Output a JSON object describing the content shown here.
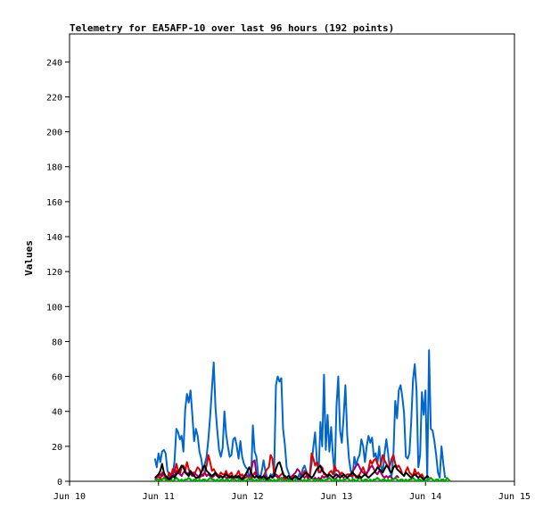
{
  "chart_data": {
    "type": "line",
    "title": "Telemetry for EA5AFP-10 over last 96 hours (192 points)",
    "xlabel": "",
    "ylabel": "Values",
    "ylim": [
      0,
      256
    ],
    "yticks": [
      0,
      20,
      40,
      60,
      80,
      100,
      120,
      140,
      160,
      180,
      200,
      220,
      240
    ],
    "xlim": [
      0,
      5
    ],
    "xticks": [
      {
        "x": 0,
        "label": "Jun 10"
      },
      {
        "x": 1,
        "label": "Jun 11"
      },
      {
        "x": 2,
        "label": "Jun 12"
      },
      {
        "x": 3,
        "label": "Jun 13"
      },
      {
        "x": 4,
        "label": "Jun 14"
      },
      {
        "x": 5,
        "label": "Jun 15"
      }
    ],
    "grid": false,
    "x_start": 0.96,
    "x_step": 0.02,
    "series": [
      {
        "color": "#0066cc",
        "values": [
          13,
          8,
          16,
          11,
          17,
          18,
          16,
          6,
          4,
          1,
          3,
          12,
          30,
          28,
          24,
          26,
          17,
          41,
          50,
          45,
          52,
          38,
          23,
          30,
          26,
          17,
          13,
          6,
          10,
          14,
          24,
          37,
          53,
          68,
          42,
          29,
          18,
          14,
          19,
          40,
          27,
          20,
          14,
          15,
          24,
          25,
          20,
          13,
          23,
          14,
          10,
          8,
          7,
          1,
          1,
          32,
          17,
          14,
          4,
          1,
          6,
          12,
          6,
          2,
          1,
          4,
          3,
          6,
          55,
          60,
          57,
          59,
          30,
          21,
          8,
          5,
          2,
          1,
          3,
          2,
          1,
          4,
          2,
          7,
          9,
          6,
          2,
          3,
          10,
          20,
          28,
          12,
          5,
          34,
          20,
          61,
          18,
          38,
          17,
          31,
          15,
          3,
          43,
          60,
          29,
          22,
          37,
          55,
          27,
          13,
          6,
          2,
          14,
          9,
          13,
          15,
          24,
          20,
          11,
          20,
          26,
          22,
          25,
          14,
          16,
          10,
          20,
          9,
          5,
          16,
          24,
          16,
          6,
          3,
          16,
          46,
          36,
          52,
          55,
          48,
          39,
          14,
          13,
          16,
          34,
          58,
          67,
          52,
          8,
          15,
          51,
          38,
          52,
          2,
          75,
          30,
          29,
          23,
          15,
          5,
          2,
          20,
          10,
          2
        ]
      },
      {
        "color": "#dd0000",
        "values": [
          1,
          2,
          3,
          1,
          5,
          4,
          1,
          2,
          5,
          3,
          7,
          5,
          10,
          6,
          4,
          8,
          9,
          6,
          11,
          7,
          4,
          5,
          3,
          6,
          8,
          7,
          4,
          3,
          5,
          9,
          15,
          11,
          6,
          7,
          5,
          4,
          3,
          5,
          4,
          4,
          6,
          3,
          4,
          5,
          2,
          3,
          4,
          6,
          3,
          4,
          2,
          2,
          3,
          2,
          1,
          3,
          5,
          3,
          2,
          1,
          2,
          3,
          5,
          7,
          8,
          15,
          13,
          4,
          3,
          2,
          3,
          4,
          5,
          1,
          2,
          1,
          2,
          1,
          3,
          3,
          2,
          1,
          2,
          3,
          6,
          5,
          1,
          4,
          16,
          13,
          9,
          11,
          6,
          5,
          8,
          4,
          4,
          3,
          5,
          6,
          4,
          9,
          6,
          6,
          4,
          5,
          4,
          3,
          4,
          4,
          3,
          3,
          4,
          2,
          3,
          4,
          6,
          8,
          5,
          4,
          7,
          12,
          10,
          12,
          13,
          10,
          8,
          10,
          15,
          12,
          10,
          8,
          9,
          13,
          15,
          10,
          8,
          9,
          7,
          4,
          3,
          6,
          8,
          5,
          4,
          3,
          7,
          4,
          5,
          3,
          4,
          2
        ]
      },
      {
        "color": "#990066",
        "values": [
          1,
          2,
          3,
          4,
          3,
          5,
          2,
          1,
          2,
          3,
          4,
          3,
          6,
          5,
          4,
          3,
          5,
          6,
          4,
          5,
          4,
          3,
          5,
          4,
          3,
          2,
          3,
          4,
          5,
          3,
          4,
          3,
          2,
          3,
          4,
          3,
          2,
          3,
          2,
          3,
          2,
          2,
          3,
          2,
          1,
          2,
          3,
          2,
          1,
          2,
          3,
          4,
          3,
          2,
          6,
          11,
          12,
          4,
          2,
          1,
          2,
          1,
          3,
          2,
          2,
          3,
          2,
          3,
          4,
          3,
          2,
          1,
          2,
          3,
          2,
          1,
          2,
          3,
          4,
          5,
          7,
          6,
          4,
          3,
          2,
          3,
          2,
          3,
          2,
          1,
          2,
          1,
          2,
          1,
          3,
          2,
          3,
          2,
          4,
          3,
          2,
          1,
          2,
          3,
          4,
          3,
          2,
          3,
          2,
          3,
          4,
          6,
          7,
          9,
          10,
          8,
          6,
          5,
          4,
          5,
          6,
          8,
          9,
          7,
          5,
          4,
          6,
          5,
          3,
          2,
          3,
          2,
          3,
          2,
          1,
          2,
          3,
          2
        ]
      },
      {
        "color": "#00aa00",
        "values": [
          0,
          1,
          1,
          0,
          1,
          2,
          1,
          0,
          1,
          1,
          0,
          1,
          2,
          1,
          0,
          1,
          0,
          1,
          1,
          2,
          1,
          0,
          1,
          1,
          0,
          1,
          0,
          1,
          1,
          0,
          1,
          2,
          1,
          1,
          0,
          1,
          0,
          1,
          1,
          0,
          1,
          1,
          0,
          1,
          2,
          1,
          0,
          1,
          1,
          0,
          1,
          0,
          1,
          2,
          1,
          1,
          0,
          1,
          0,
          1,
          1,
          2,
          1,
          0,
          1,
          1,
          0,
          1,
          0,
          1,
          1,
          2,
          1,
          0,
          1,
          0,
          1,
          1,
          0,
          1,
          2,
          1,
          1,
          0,
          1,
          0,
          1,
          1,
          2,
          1,
          0,
          1,
          1,
          0,
          1,
          0,
          1,
          1,
          2,
          1,
          0,
          1,
          1,
          0,
          1,
          0,
          1,
          1,
          2,
          1,
          0,
          1,
          1,
          0,
          1,
          2,
          1,
          0,
          1,
          1,
          0,
          1,
          0,
          1,
          1,
          2,
          1,
          0,
          1,
          1,
          0,
          1,
          0,
          1,
          1,
          2,
          1,
          0,
          1,
          1,
          0,
          1,
          0,
          1,
          1,
          2,
          1,
          0,
          1,
          1,
          0,
          1,
          0,
          1,
          1,
          2,
          1,
          0,
          1,
          1,
          0,
          1,
          1,
          0,
          2,
          1,
          0
        ]
      },
      {
        "color": "#000000",
        "values": [
          2,
          3,
          4,
          6,
          10,
          5,
          3,
          2,
          1,
          2,
          3,
          2,
          4,
          5,
          7,
          9,
          8,
          5,
          4,
          3,
          6,
          4,
          3,
          2,
          2,
          3,
          5,
          8,
          9,
          6,
          5,
          4,
          3,
          4,
          5,
          3,
          2,
          3,
          2,
          3,
          4,
          3,
          2,
          3,
          2,
          3,
          2,
          3,
          2,
          1,
          2,
          4,
          6,
          8,
          5,
          3,
          2,
          3,
          2,
          3,
          2,
          3,
          2,
          1,
          2,
          3,
          2,
          3,
          7,
          10,
          11,
          8,
          4,
          3,
          2,
          3,
          2,
          1,
          2,
          3,
          2,
          1,
          2,
          3,
          4,
          5,
          4,
          3,
          2,
          3,
          5,
          7,
          8,
          9,
          6,
          5,
          4,
          3,
          4,
          3,
          2,
          3,
          4,
          3,
          2,
          3,
          4,
          3,
          2,
          3,
          4,
          5,
          4,
          3,
          2,
          3,
          2,
          3,
          4,
          3,
          2,
          3,
          4,
          5,
          6,
          8,
          7,
          6,
          5,
          7,
          9,
          8,
          6,
          5,
          8,
          9,
          7,
          6,
          5,
          4,
          3,
          5,
          4,
          3,
          2,
          3,
          4,
          3,
          2,
          3,
          2,
          1,
          2,
          3,
          2
        ]
      }
    ]
  }
}
